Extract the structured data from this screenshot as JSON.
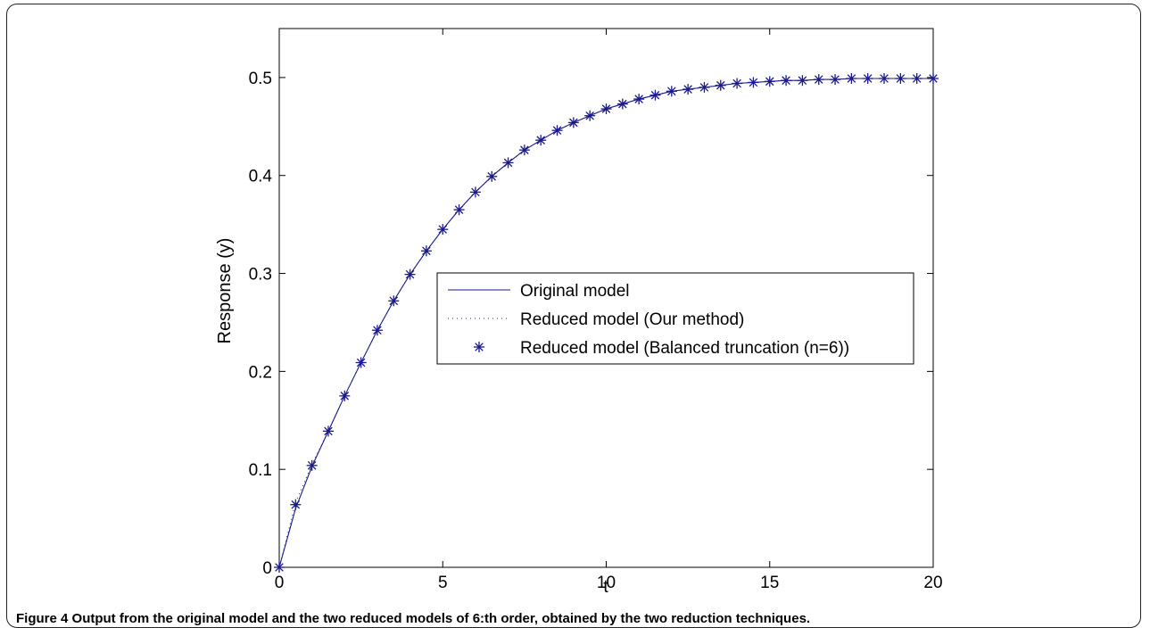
{
  "caption": {
    "label": "Figure 4",
    "text": "Output from the original model and the two reduced models of 6:th order, obtained by the two reduction techniques."
  },
  "chart_data": {
    "type": "line",
    "xlabel": "t",
    "ylabel": "Response (y)",
    "xlim": [
      0,
      20
    ],
    "ylim": [
      0,
      0.55
    ],
    "xticks": [
      0,
      5,
      10,
      15,
      20
    ],
    "yticks": [
      0,
      0.1,
      0.2,
      0.3,
      0.4,
      0.5
    ],
    "grid": false,
    "legend_position": "center-right",
    "series": [
      {
        "name": "Original model",
        "style": "solid",
        "color": "#1a1a8c",
        "x": [
          0,
          0.5,
          1,
          1.5,
          2,
          2.5,
          3,
          3.5,
          4,
          4.5,
          5,
          5.5,
          6,
          6.5,
          7,
          7.5,
          8,
          8.5,
          9,
          9.5,
          10,
          10.5,
          11,
          11.5,
          12,
          12.5,
          13,
          13.5,
          14,
          14.5,
          15,
          15.5,
          16,
          16.5,
          17,
          17.5,
          18,
          18.5,
          19,
          19.5,
          20
        ],
        "y": [
          0,
          0.06,
          0.103,
          0.139,
          0.175,
          0.209,
          0.242,
          0.272,
          0.299,
          0.323,
          0.345,
          0.365,
          0.383,
          0.399,
          0.413,
          0.426,
          0.436,
          0.446,
          0.454,
          0.461,
          0.468,
          0.473,
          0.478,
          0.482,
          0.486,
          0.488,
          0.49,
          0.492,
          0.494,
          0.495,
          0.496,
          0.497,
          0.497,
          0.498,
          0.498,
          0.499,
          0.499,
          0.499,
          0.499,
          0.499,
          0.499
        ]
      },
      {
        "name": "Reduced model (Our method)",
        "style": "dotted",
        "color": "#1a1a8c",
        "x": [
          0,
          0.5,
          1,
          1.5,
          2,
          2.5,
          3,
          3.5,
          4,
          4.5,
          5,
          5.5,
          6,
          6.5,
          7,
          7.5,
          8,
          8.5,
          9,
          9.5,
          10,
          10.5,
          11,
          11.5,
          12,
          12.5,
          13,
          13.5,
          14,
          14.5,
          15,
          15.5,
          16,
          16.5,
          17,
          17.5,
          18,
          18.5,
          19,
          19.5,
          20
        ],
        "y": [
          0,
          0.066,
          0.105,
          0.139,
          0.175,
          0.209,
          0.242,
          0.272,
          0.299,
          0.323,
          0.345,
          0.365,
          0.383,
          0.399,
          0.413,
          0.426,
          0.436,
          0.446,
          0.454,
          0.461,
          0.468,
          0.473,
          0.478,
          0.482,
          0.486,
          0.488,
          0.49,
          0.492,
          0.494,
          0.495,
          0.496,
          0.497,
          0.497,
          0.498,
          0.498,
          0.499,
          0.499,
          0.499,
          0.499,
          0.499,
          0.499
        ]
      },
      {
        "name": "Reduced model (Balanced truncation (n=6))",
        "style": "markers",
        "marker": "asterisk",
        "color": "#1a1a8c",
        "x": [
          0,
          0.5,
          1,
          1.5,
          2,
          2.5,
          3,
          3.5,
          4,
          4.5,
          5,
          5.5,
          6,
          6.5,
          7,
          7.5,
          8,
          8.5,
          9,
          9.5,
          10,
          10.5,
          11,
          11.5,
          12,
          12.5,
          13,
          13.5,
          14,
          14.5,
          15,
          15.5,
          16,
          16.5,
          17,
          17.5,
          18,
          18.5,
          19,
          19.5,
          20
        ],
        "y": [
          0,
          0.064,
          0.104,
          0.139,
          0.175,
          0.209,
          0.242,
          0.272,
          0.299,
          0.323,
          0.345,
          0.365,
          0.383,
          0.399,
          0.413,
          0.426,
          0.436,
          0.446,
          0.454,
          0.461,
          0.468,
          0.473,
          0.478,
          0.482,
          0.486,
          0.488,
          0.49,
          0.492,
          0.494,
          0.495,
          0.496,
          0.497,
          0.497,
          0.498,
          0.498,
          0.499,
          0.499,
          0.499,
          0.499,
          0.499,
          0.499
        ]
      }
    ]
  }
}
